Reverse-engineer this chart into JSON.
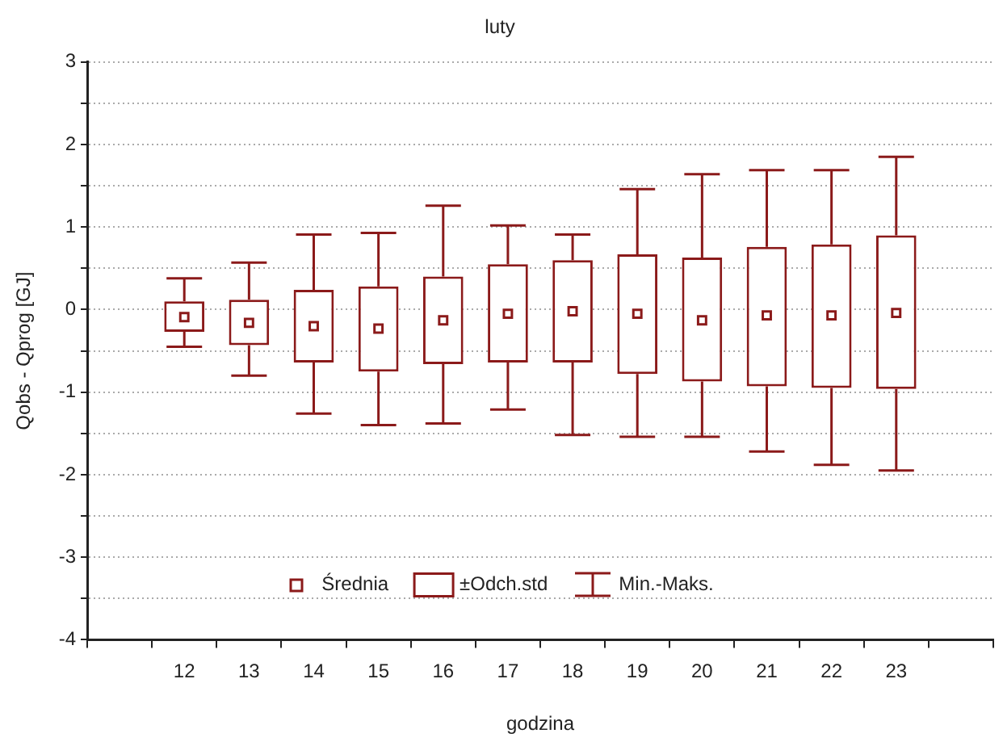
{
  "chart_data": {
    "type": "box",
    "title": "luty",
    "xlabel": "godzina",
    "ylabel": "Qobs - Qprog [GJ]",
    "categories": [
      null,
      "12",
      "13",
      "14",
      "15",
      "16",
      "17",
      "18",
      "19",
      "20",
      "21",
      "22",
      "23",
      null
    ],
    "ylim": [
      -4,
      3
    ],
    "yticks": [
      -4,
      {
        "value": -3.5,
        "label": null
      },
      -3,
      {
        "value": -2.5,
        "label": null
      },
      -2,
      {
        "value": -1.5,
        "label": null
      },
      -1,
      {
        "value": -0.5,
        "label": null
      },
      0,
      {
        "value": 0.5,
        "label": null
      },
      1,
      {
        "value": 1.5,
        "label": null
      },
      2,
      {
        "value": 2.5,
        "label": null
      },
      3
    ],
    "grid": "y",
    "legend": "bottom",
    "marker": "square",
    "annotations": [
      "Średnia",
      "Min.-Maks."
    ],
    "series": [
      {
        "name": "±Odch.std",
        "color": "#8b1a1a",
        "boxes": [
          null,
          {
            "low": -0.45,
            "q1": -0.27,
            "q3": 0.1,
            "high": 0.38,
            "mean": -0.09
          },
          {
            "low": -0.8,
            "q1": -0.43,
            "q3": 0.12,
            "high": 0.57,
            "mean": -0.16
          },
          {
            "low": -1.26,
            "q1": -0.64,
            "q3": 0.24,
            "high": 0.91,
            "mean": -0.2
          },
          {
            "low": -1.4,
            "q1": -0.75,
            "q3": 0.28,
            "high": 0.93,
            "mean": -0.23
          },
          {
            "low": -1.38,
            "q1": -0.66,
            "q3": 0.4,
            "high": 1.26,
            "mean": -0.13
          },
          {
            "low": -1.21,
            "q1": -0.64,
            "q3": 0.55,
            "high": 1.02,
            "mean": -0.05
          },
          {
            "low": -1.52,
            "q1": -0.64,
            "q3": 0.6,
            "high": 0.91,
            "mean": -0.02
          },
          {
            "low": -1.54,
            "q1": -0.78,
            "q3": 0.67,
            "high": 1.46,
            "mean": -0.05
          },
          {
            "low": -1.54,
            "q1": -0.87,
            "q3": 0.63,
            "high": 1.64,
            "mean": -0.13
          },
          {
            "low": -1.72,
            "q1": -0.93,
            "q3": 0.76,
            "high": 1.69,
            "mean": -0.07
          },
          {
            "low": -1.88,
            "q1": -0.95,
            "q3": 0.79,
            "high": 1.69,
            "mean": -0.07
          },
          {
            "low": -1.95,
            "q1": -0.96,
            "q3": 0.9,
            "high": 1.85,
            "mean": -0.04
          },
          null
        ]
      }
    ]
  }
}
